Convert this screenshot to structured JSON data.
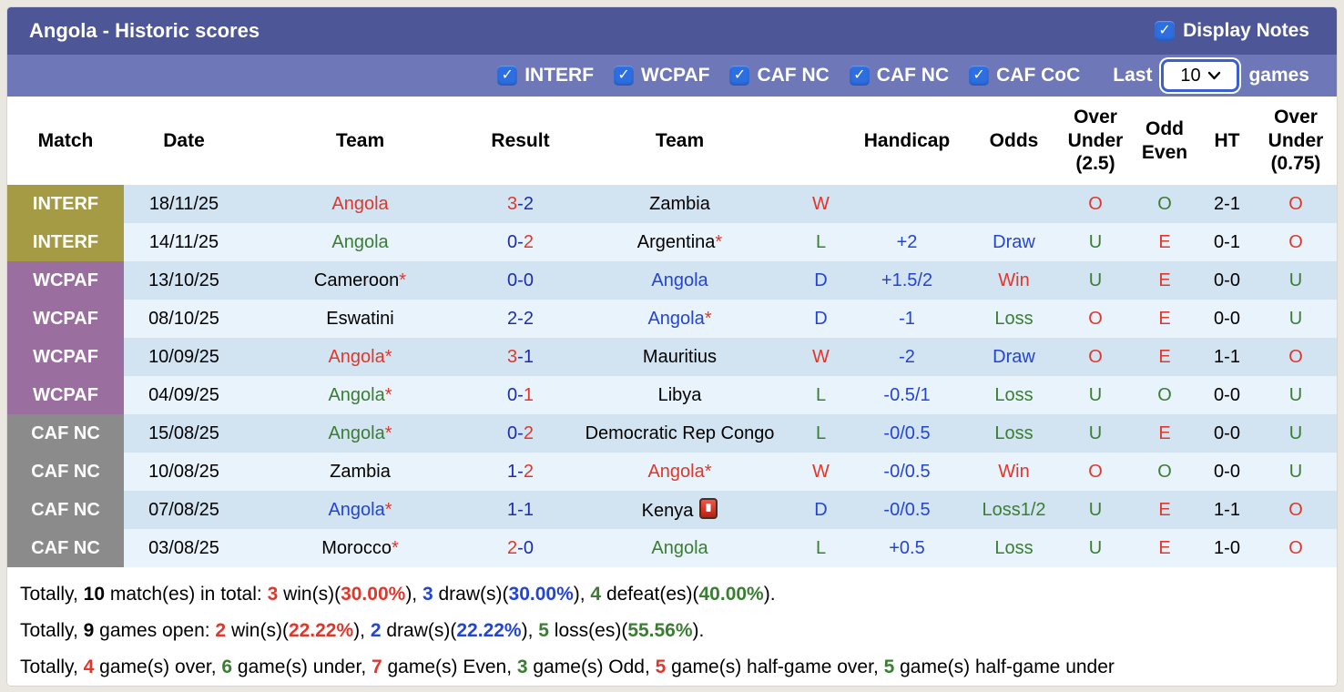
{
  "colors": {
    "title_bar": "#4d5696",
    "filter_bar": "#6e77b7",
    "checkbox_blue": "#2d6ee0",
    "badge_olive": "#a49b44",
    "badge_purple": "#9a6fa0",
    "badge_gray": "#8b8b8b",
    "row_dark": "#d2e4f1",
    "row_light": "#e9f3fb",
    "red": "#e0372c",
    "green": "#3a7d33",
    "blue": "#2444d2",
    "navy": "#1c2dae"
  },
  "icons": {
    "checkbox": "checkmark",
    "select_chevron": "chevron-down",
    "kenya_flag_badge": "red-card"
  },
  "header": {
    "title": "Angola - Historic scores",
    "display_notes_label": "Display Notes",
    "display_notes_checked": true
  },
  "filter_bar": {
    "competitions": [
      {
        "label": "INTERF",
        "checked": true
      },
      {
        "label": "WCPAF",
        "checked": true
      },
      {
        "label": "CAF NC",
        "checked": true
      },
      {
        "label": "CAF NC",
        "checked": true
      },
      {
        "label": "CAF CoC",
        "checked": true
      }
    ],
    "last_label": "Last",
    "games_count": "10",
    "games_label": "games"
  },
  "table": {
    "headers": [
      "Match",
      "Date",
      "Team",
      "Result",
      "Team",
      "",
      "Handicap",
      "Odds",
      "Over Under (2.5)",
      "Odd Even",
      "HT",
      "Over Under (0.75)"
    ],
    "rows": [
      {
        "comp": "INTERF",
        "comp_color": "olive",
        "date": "18/11/25",
        "team1": {
          "name": "Angola",
          "color": "red",
          "star": false,
          "icon": false
        },
        "result": {
          "home": "3",
          "home_color": "red",
          "away": "2",
          "away_color": "navy"
        },
        "team2": {
          "name": "Zambia",
          "color": "black",
          "star": false,
          "icon": false
        },
        "wld": {
          "text": "W",
          "color": "red"
        },
        "handicap": "",
        "odds": {
          "text": "",
          "color": "black"
        },
        "ou25": {
          "text": "O",
          "color": "red"
        },
        "oddeven": {
          "text": "O",
          "color": "green"
        },
        "ht": "2-1",
        "ou075": {
          "text": "O",
          "color": "red"
        }
      },
      {
        "comp": "INTERF",
        "comp_color": "olive",
        "date": "14/11/25",
        "team1": {
          "name": "Angola",
          "color": "green",
          "star": false,
          "icon": false
        },
        "result": {
          "home": "0",
          "home_color": "navy",
          "away": "2",
          "away_color": "red"
        },
        "team2": {
          "name": "Argentina",
          "color": "black",
          "star": true,
          "icon": false
        },
        "wld": {
          "text": "L",
          "color": "green"
        },
        "handicap": "+2",
        "odds": {
          "text": "Draw",
          "color": "blue"
        },
        "ou25": {
          "text": "U",
          "color": "green"
        },
        "oddeven": {
          "text": "E",
          "color": "red"
        },
        "ht": "0-1",
        "ou075": {
          "text": "O",
          "color": "red"
        }
      },
      {
        "comp": "WCPAF",
        "comp_color": "purple",
        "date": "13/10/25",
        "team1": {
          "name": "Cameroon",
          "color": "black",
          "star": true,
          "icon": false
        },
        "result": {
          "home": "0",
          "home_color": "navy",
          "away": "0",
          "away_color": "navy"
        },
        "team2": {
          "name": "Angola",
          "color": "blue",
          "star": false,
          "icon": false
        },
        "wld": {
          "text": "D",
          "color": "blue"
        },
        "handicap": "+1.5/2",
        "odds": {
          "text": "Win",
          "color": "red"
        },
        "ou25": {
          "text": "U",
          "color": "green"
        },
        "oddeven": {
          "text": "E",
          "color": "red"
        },
        "ht": "0-0",
        "ou075": {
          "text": "U",
          "color": "green"
        }
      },
      {
        "comp": "WCPAF",
        "comp_color": "purple",
        "date": "08/10/25",
        "team1": {
          "name": "Eswatini",
          "color": "black",
          "star": false,
          "icon": false
        },
        "result": {
          "home": "2",
          "home_color": "navy",
          "away": "2",
          "away_color": "navy"
        },
        "team2": {
          "name": "Angola",
          "color": "blue",
          "star": true,
          "icon": false
        },
        "wld": {
          "text": "D",
          "color": "blue"
        },
        "handicap": "-1",
        "odds": {
          "text": "Loss",
          "color": "green"
        },
        "ou25": {
          "text": "O",
          "color": "red"
        },
        "oddeven": {
          "text": "E",
          "color": "red"
        },
        "ht": "0-0",
        "ou075": {
          "text": "U",
          "color": "green"
        }
      },
      {
        "comp": "WCPAF",
        "comp_color": "purple",
        "date": "10/09/25",
        "team1": {
          "name": "Angola",
          "color": "red",
          "star": true,
          "icon": false
        },
        "result": {
          "home": "3",
          "home_color": "red",
          "away": "1",
          "away_color": "navy"
        },
        "team2": {
          "name": "Mauritius",
          "color": "black",
          "star": false,
          "icon": false
        },
        "wld": {
          "text": "W",
          "color": "red"
        },
        "handicap": "-2",
        "odds": {
          "text": "Draw",
          "color": "blue"
        },
        "ou25": {
          "text": "O",
          "color": "red"
        },
        "oddeven": {
          "text": "E",
          "color": "red"
        },
        "ht": "1-1",
        "ou075": {
          "text": "O",
          "color": "red"
        }
      },
      {
        "comp": "WCPAF",
        "comp_color": "purple",
        "date": "04/09/25",
        "team1": {
          "name": "Angola",
          "color": "green",
          "star": true,
          "icon": false
        },
        "result": {
          "home": "0",
          "home_color": "navy",
          "away": "1",
          "away_color": "red"
        },
        "team2": {
          "name": "Libya",
          "color": "black",
          "star": false,
          "icon": false
        },
        "wld": {
          "text": "L",
          "color": "green"
        },
        "handicap": "-0.5/1",
        "odds": {
          "text": "Loss",
          "color": "green"
        },
        "ou25": {
          "text": "U",
          "color": "green"
        },
        "oddeven": {
          "text": "O",
          "color": "green"
        },
        "ht": "0-0",
        "ou075": {
          "text": "U",
          "color": "green"
        }
      },
      {
        "comp": "CAF NC",
        "comp_color": "gray",
        "date": "15/08/25",
        "team1": {
          "name": "Angola",
          "color": "green",
          "star": true,
          "icon": false
        },
        "result": {
          "home": "0",
          "home_color": "navy",
          "away": "2",
          "away_color": "red"
        },
        "team2": {
          "name": "Democratic Rep Congo",
          "color": "black",
          "star": false,
          "icon": false
        },
        "wld": {
          "text": "L",
          "color": "green"
        },
        "handicap": "-0/0.5",
        "odds": {
          "text": "Loss",
          "color": "green"
        },
        "ou25": {
          "text": "U",
          "color": "green"
        },
        "oddeven": {
          "text": "E",
          "color": "red"
        },
        "ht": "0-0",
        "ou075": {
          "text": "U",
          "color": "green"
        }
      },
      {
        "comp": "CAF NC",
        "comp_color": "gray",
        "date": "10/08/25",
        "team1": {
          "name": "Zambia",
          "color": "black",
          "star": false,
          "icon": false
        },
        "result": {
          "home": "1",
          "home_color": "navy",
          "away": "2",
          "away_color": "red"
        },
        "team2": {
          "name": "Angola",
          "color": "red",
          "star": true,
          "icon": false
        },
        "wld": {
          "text": "W",
          "color": "red"
        },
        "handicap": "-0/0.5",
        "odds": {
          "text": "Win",
          "color": "red"
        },
        "ou25": {
          "text": "O",
          "color": "red"
        },
        "oddeven": {
          "text": "O",
          "color": "green"
        },
        "ht": "0-0",
        "ou075": {
          "text": "U",
          "color": "green"
        }
      },
      {
        "comp": "CAF NC",
        "comp_color": "gray",
        "date": "07/08/25",
        "team1": {
          "name": "Angola",
          "color": "blue",
          "star": true,
          "icon": false
        },
        "result": {
          "home": "1",
          "home_color": "navy",
          "away": "1",
          "away_color": "navy"
        },
        "team2": {
          "name": "Kenya",
          "color": "black",
          "star": false,
          "icon": true
        },
        "wld": {
          "text": "D",
          "color": "blue"
        },
        "handicap": "-0/0.5",
        "odds": {
          "text": "Loss1/2",
          "color": "green"
        },
        "ou25": {
          "text": "U",
          "color": "green"
        },
        "oddeven": {
          "text": "E",
          "color": "red"
        },
        "ht": "1-1",
        "ou075": {
          "text": "O",
          "color": "red"
        }
      },
      {
        "comp": "CAF NC",
        "comp_color": "gray",
        "date": "03/08/25",
        "team1": {
          "name": "Morocco",
          "color": "black",
          "star": true,
          "icon": false
        },
        "result": {
          "home": "2",
          "home_color": "red",
          "away": "0",
          "away_color": "navy"
        },
        "team2": {
          "name": "Angola",
          "color": "green",
          "star": false,
          "icon": false
        },
        "wld": {
          "text": "L",
          "color": "green"
        },
        "handicap": "+0.5",
        "odds": {
          "text": "Loss",
          "color": "green"
        },
        "ou25": {
          "text": "U",
          "color": "green"
        },
        "oddeven": {
          "text": "E",
          "color": "red"
        },
        "ht": "1-0",
        "ou075": {
          "text": "O",
          "color": "red"
        }
      }
    ]
  },
  "summary": {
    "lines": [
      [
        {
          "t": "Totally, "
        },
        {
          "t": "10",
          "b": true
        },
        {
          "t": " match(es) in total: "
        },
        {
          "t": "3",
          "b": true,
          "c": "red"
        },
        {
          "t": " win(s)("
        },
        {
          "t": "30.00%",
          "b": true,
          "c": "red"
        },
        {
          "t": "), "
        },
        {
          "t": "3",
          "b": true,
          "c": "blue"
        },
        {
          "t": " draw(s)("
        },
        {
          "t": "30.00%",
          "b": true,
          "c": "blue"
        },
        {
          "t": "), "
        },
        {
          "t": "4",
          "b": true,
          "c": "green"
        },
        {
          "t": " defeat(es)("
        },
        {
          "t": "40.00%",
          "b": true,
          "c": "green"
        },
        {
          "t": ")."
        }
      ],
      [
        {
          "t": "Totally, "
        },
        {
          "t": "9",
          "b": true
        },
        {
          "t": " games open: "
        },
        {
          "t": "2",
          "b": true,
          "c": "red"
        },
        {
          "t": " win(s)("
        },
        {
          "t": "22.22%",
          "b": true,
          "c": "red"
        },
        {
          "t": "), "
        },
        {
          "t": "2",
          "b": true,
          "c": "blue"
        },
        {
          "t": " draw(s)("
        },
        {
          "t": "22.22%",
          "b": true,
          "c": "blue"
        },
        {
          "t": "), "
        },
        {
          "t": "5",
          "b": true,
          "c": "green"
        },
        {
          "t": " loss(es)("
        },
        {
          "t": "55.56%",
          "b": true,
          "c": "green"
        },
        {
          "t": ")."
        }
      ],
      [
        {
          "t": "Totally, "
        },
        {
          "t": "4",
          "b": true,
          "c": "red"
        },
        {
          "t": " game(s) over, "
        },
        {
          "t": "6",
          "b": true,
          "c": "green"
        },
        {
          "t": " game(s) under, "
        },
        {
          "t": "7",
          "b": true,
          "c": "red"
        },
        {
          "t": " game(s) Even, "
        },
        {
          "t": "3",
          "b": true,
          "c": "green"
        },
        {
          "t": " game(s) Odd, "
        },
        {
          "t": "5",
          "b": true,
          "c": "red"
        },
        {
          "t": " game(s) half-game over, "
        },
        {
          "t": "5",
          "b": true,
          "c": "green"
        },
        {
          "t": " game(s) half-game under"
        }
      ]
    ]
  }
}
